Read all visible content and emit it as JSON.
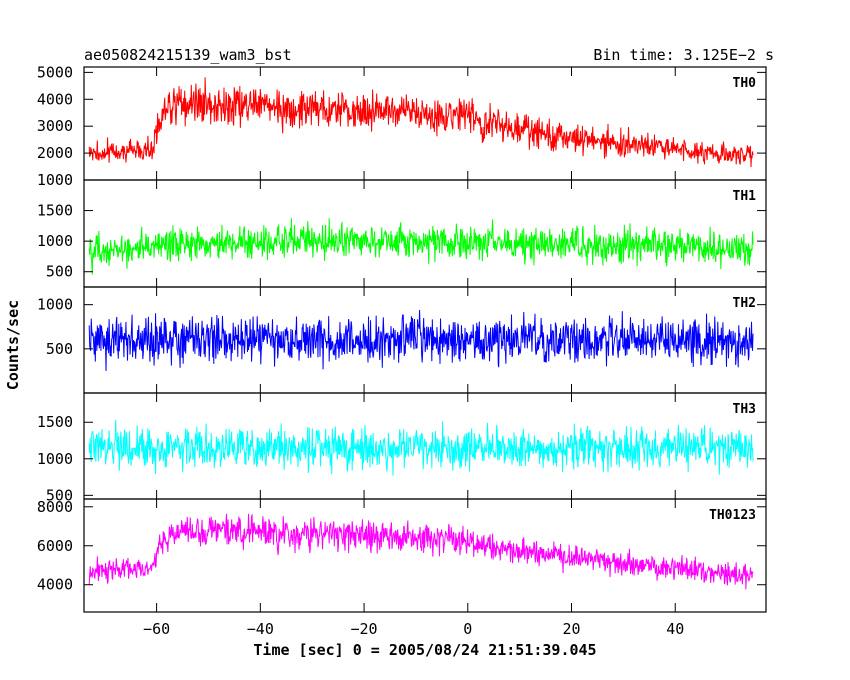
{
  "chart_data": {
    "type": "line",
    "title_left": "ae050824215139_wam3_bst",
    "title_right": "Bin time: 3.125E−2 s",
    "xlabel": "Time [sec] 0 = 2005/08/24 21:51:39.045",
    "ylabel": "Counts/sec",
    "xlim": [
      -74,
      57.5
    ],
    "xticks": [
      -60,
      -40,
      -20,
      0,
      20,
      40
    ],
    "xtick_labels": [
      "−60",
      "−40",
      "−20",
      "0",
      "20",
      "40"
    ],
    "x_range": [
      -73,
      55
    ],
    "panels": [
      {
        "name": "TH0",
        "color": "#ff0000",
        "ylim": [
          1000,
          5200
        ],
        "yticks": [
          1000,
          2000,
          3000,
          4000,
          5000
        ],
        "profile": [
          [
            -73,
            2000
          ],
          [
            -61,
            2100
          ],
          [
            -59,
            3500
          ],
          [
            -55,
            3900
          ],
          [
            -35,
            3700
          ],
          [
            -15,
            3600
          ],
          [
            0,
            3400
          ],
          [
            5,
            3100
          ],
          [
            20,
            2550
          ],
          [
            40,
            2150
          ],
          [
            55,
            1850
          ]
        ],
        "spread": [
          [
            -73,
            520
          ],
          [
            -60,
            520
          ],
          [
            -58,
            850
          ],
          [
            -30,
            850
          ],
          [
            0,
            800
          ],
          [
            20,
            650
          ],
          [
            55,
            480
          ]
        ]
      },
      {
        "name": "TH1",
        "color": "#00ff00",
        "ylim": [
          250,
          2000
        ],
        "yticks": [
          500,
          1000,
          1500
        ],
        "profile": [
          [
            -73,
            850
          ],
          [
            -60,
            900
          ],
          [
            -35,
            1020
          ],
          [
            -10,
            1000
          ],
          [
            20,
            940
          ],
          [
            55,
            880
          ]
        ],
        "spread": [
          [
            -73,
            330
          ],
          [
            55,
            330
          ]
        ]
      },
      {
        "name": "TH2",
        "color": "#0000ff",
        "ylim": [
          0,
          1200
        ],
        "yticks": [
          500,
          1000
        ],
        "profile": [
          [
            -73,
            600
          ],
          [
            55,
            600
          ]
        ],
        "spread": [
          [
            -73,
            300
          ],
          [
            55,
            300
          ]
        ]
      },
      {
        "name": "TH3",
        "color": "#00ffff",
        "ylim": [
          450,
          1900
        ],
        "yticks": [
          500,
          1000,
          1500
        ],
        "profile": [
          [
            -73,
            1150
          ],
          [
            55,
            1150
          ]
        ],
        "spread": [
          [
            -73,
            330
          ],
          [
            55,
            330
          ]
        ]
      },
      {
        "name": "TH0123",
        "color": "#ff00ff",
        "ylim": [
          2600,
          8400
        ],
        "yticks": [
          4000,
          6000,
          8000
        ],
        "profile": [
          [
            -73,
            4700
          ],
          [
            -61,
            4800
          ],
          [
            -59,
            6200
          ],
          [
            -55,
            6800
          ],
          [
            -35,
            6600
          ],
          [
            -15,
            6500
          ],
          [
            0,
            6300
          ],
          [
            5,
            6000
          ],
          [
            20,
            5350
          ],
          [
            40,
            4800
          ],
          [
            55,
            4400
          ]
        ],
        "spread": [
          [
            -73,
            700
          ],
          [
            -60,
            700
          ],
          [
            -58,
            950
          ],
          [
            -30,
            950
          ],
          [
            0,
            900
          ],
          [
            20,
            800
          ],
          [
            55,
            650
          ]
        ]
      }
    ]
  }
}
